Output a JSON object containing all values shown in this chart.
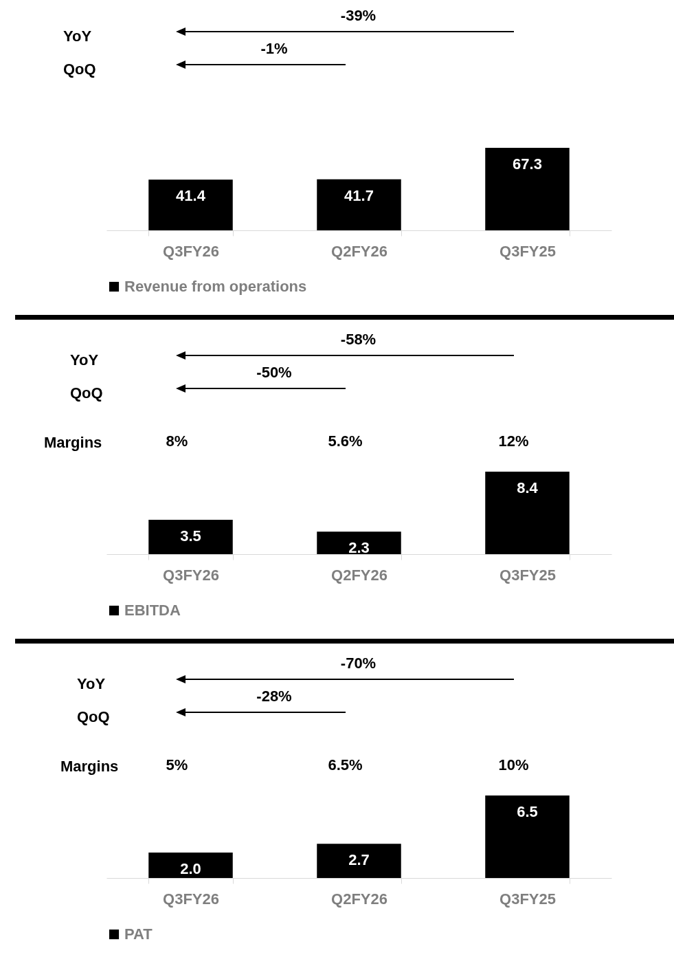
{
  "chart_data": [
    {
      "type": "bar",
      "categories": [
        "Q3FY26",
        "Q2FY26",
        "Q3FY25"
      ],
      "series": [
        {
          "name": "Revenue from operations",
          "color": "#000000",
          "values": [
            41.4,
            41.7,
            67.3
          ],
          "value_labels": [
            "41.4",
            "41.7",
            "67.3"
          ]
        }
      ],
      "legend": "bottom",
      "tick_labels": "x",
      "annotations": [
        "YoY",
        "-39%",
        "QoQ",
        "-1%"
      ]
    },
    {
      "type": "bar",
      "categories": [
        "Q3FY26",
        "Q2FY26",
        "Q3FY25"
      ],
      "series": [
        {
          "name": "EBITDA",
          "color": "#000000",
          "values": [
            3.5,
            2.3,
            8.4
          ],
          "value_labels": [
            "3.5",
            "2.3",
            "8.4"
          ]
        }
      ],
      "legend": "bottom",
      "tick_labels": "x",
      "annotations": [
        "YoY",
        "-58%",
        "QoQ",
        "-50%",
        "Margins",
        "8%",
        "5.6%",
        "12%"
      ]
    },
    {
      "type": "bar",
      "categories": [
        "Q3FY26",
        "Q2FY26",
        "Q3FY25"
      ],
      "series": [
        {
          "name": "PAT",
          "color": "#000000",
          "values": [
            2.0,
            2.7,
            6.5
          ],
          "value_labels": [
            "2.0",
            "2.7",
            "6.5"
          ]
        }
      ],
      "legend": "bottom",
      "tick_labels": "x",
      "annotations": [
        "YoY",
        "-70%",
        "QoQ",
        "-28%",
        "Margins",
        "5%",
        "6.5%",
        "10%"
      ]
    }
  ]
}
